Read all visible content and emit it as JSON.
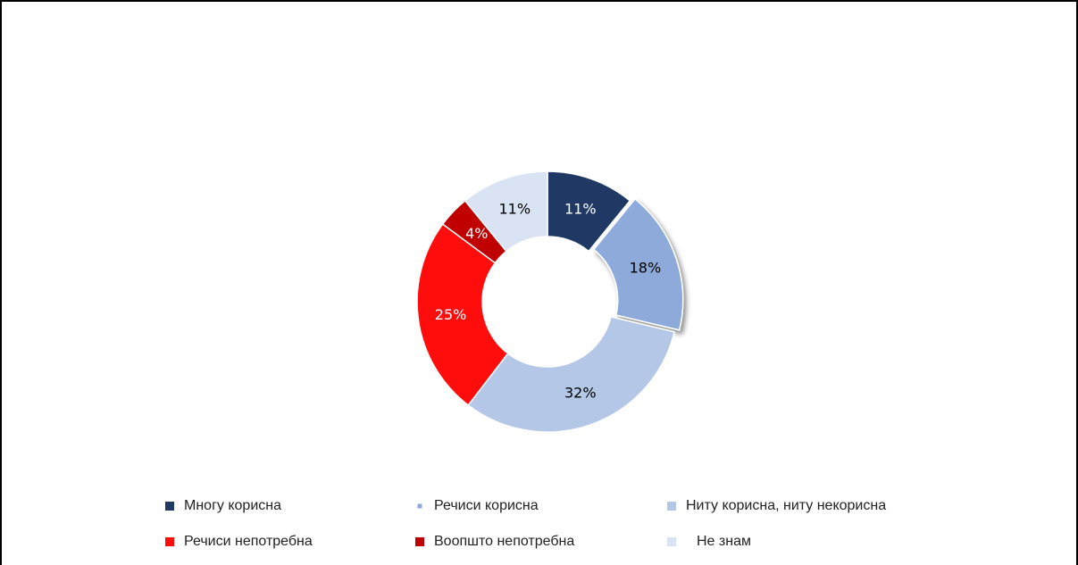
{
  "chart_data": {
    "type": "donut",
    "categories": [
      "Многу корисна",
      "Речиси корисна",
      "Ниту корисна, ниту некорисна",
      "Речиси непотребна",
      "Воопшто непотребна",
      "Не знам"
    ],
    "values": [
      11,
      18,
      32,
      25,
      4,
      11
    ],
    "value_labels": [
      "11%",
      "18%",
      "32%",
      "25%",
      "4%",
      "11%"
    ],
    "colors": [
      "#1f3864",
      "#8eaadb",
      "#b4c7e7",
      "#ff0d0d",
      "#c00000",
      "#dae3f3"
    ],
    "legend": "bottom"
  }
}
